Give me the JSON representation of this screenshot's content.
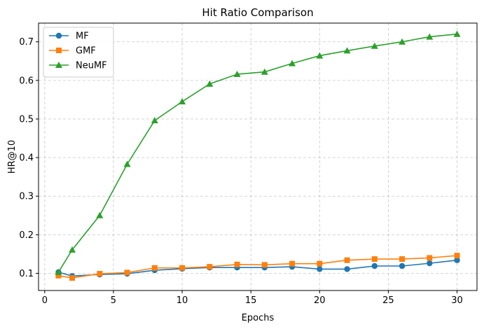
{
  "chart_data": {
    "type": "line",
    "title": "Hit Ratio Comparison",
    "xlabel": "Epochs",
    "ylabel": "HR@10",
    "xlim": [
      -0.45,
      31.45
    ],
    "ylim": [
      0.0555,
      0.7485
    ],
    "xticks": [
      0,
      5,
      10,
      15,
      20,
      25,
      30
    ],
    "yticks": [
      0.1,
      0.2,
      0.3,
      0.4,
      0.5,
      0.6,
      0.7
    ],
    "grid": true,
    "legend_position": "top-left",
    "x": [
      1,
      2,
      4,
      6,
      8,
      10,
      12,
      14,
      16,
      18,
      20,
      22,
      24,
      26,
      28,
      30
    ],
    "series": [
      {
        "name": "MF",
        "color": "#1f77b4",
        "marker": "circle",
        "values": [
          0.103,
          0.093,
          0.097,
          0.099,
          0.108,
          0.112,
          0.115,
          0.115,
          0.115,
          0.117,
          0.111,
          0.111,
          0.119,
          0.119,
          0.126,
          0.134
        ]
      },
      {
        "name": "GMF",
        "color": "#ff7f0e",
        "marker": "square",
        "values": [
          0.094,
          0.088,
          0.099,
          0.102,
          0.114,
          0.114,
          0.117,
          0.123,
          0.122,
          0.125,
          0.125,
          0.134,
          0.137,
          0.137,
          0.14,
          0.146
        ]
      },
      {
        "name": "NeuMF",
        "color": "#2ca02c",
        "marker": "triangle",
        "values": [
          0.103,
          0.161,
          0.25,
          0.383,
          0.496,
          0.545,
          0.591,
          0.616,
          0.622,
          0.644,
          0.664,
          0.677,
          0.689,
          0.7,
          0.713,
          0.72
        ]
      }
    ]
  }
}
